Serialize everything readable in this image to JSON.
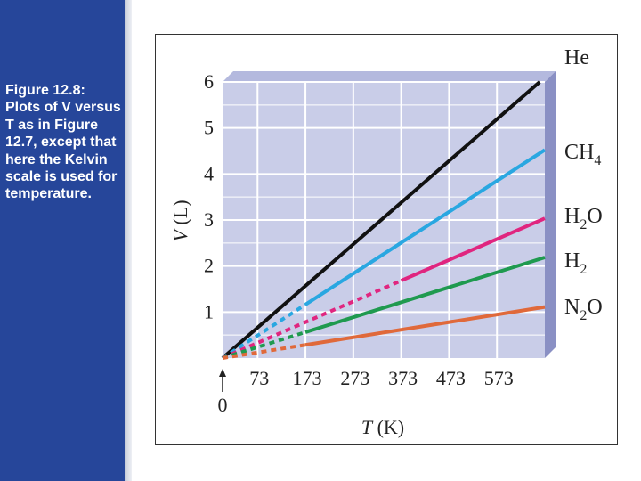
{
  "caption": "Figure 12.8: Plots of V versus T as in Figure 12.7, except that here the Kelvin scale is used for temperature.",
  "colors": {
    "sidebar": "#26469a",
    "plot_background": "#c9cde8",
    "plot_side": "#8a90c4",
    "grid": "#ffffff"
  },
  "chart_data": {
    "type": "line",
    "xlabel_var": "T",
    "xlabel_unit": "(K)",
    "ylabel_var": "V",
    "ylabel_unit": "(L)",
    "xlim": [
      0,
      673
    ],
    "ylim": [
      0,
      6
    ],
    "x_ticks": [
      73,
      173,
      273,
      373,
      473,
      573
    ],
    "y_ticks": [
      1,
      2,
      3,
      4,
      5,
      6
    ],
    "origin_label": "0",
    "grid": true,
    "legend": "right, labels at line ends",
    "series": [
      {
        "name": "He",
        "sub": "",
        "name2": "",
        "sub2": "",
        "color": "#111111",
        "slope": 0.00906,
        "dashed_until": 0
      },
      {
        "name": "CH",
        "sub": "4",
        "name2": "",
        "sub2": "",
        "color": "#29a7e1",
        "slope": 0.00672,
        "dashed_until": 173
      },
      {
        "name": "H",
        "sub": "2",
        "name2": "O",
        "sub2": "",
        "color": "#e0257f",
        "slope": 0.00451,
        "dashed_until": 373
      },
      {
        "name": "H",
        "sub": "2",
        "name2": "",
        "sub2": "",
        "color": "#1f9a4f",
        "slope": 0.00325,
        "dashed_until": 173
      },
      {
        "name": "N",
        "sub": "2",
        "name2": "O",
        "sub2": "",
        "color": "#e0693a",
        "slope": 0.00165,
        "dashed_until": 173
      }
    ]
  }
}
